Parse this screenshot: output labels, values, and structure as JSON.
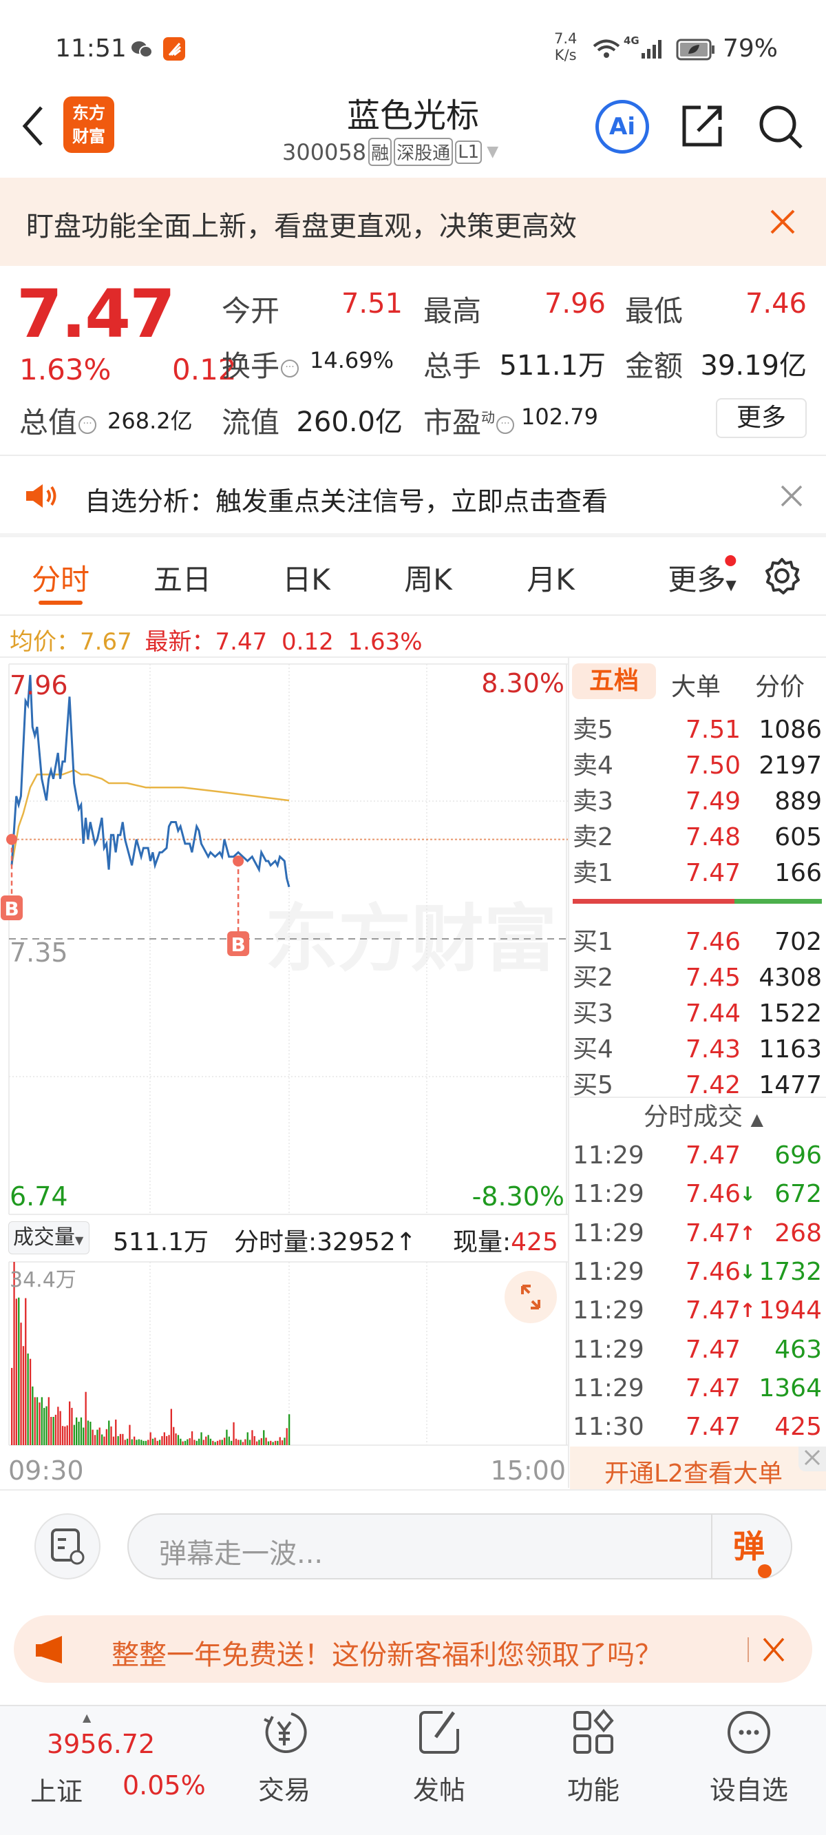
{
  "status_bar": {
    "time": "11:51",
    "net_speed": "7.4",
    "net_unit": "K/s",
    "network": "4G",
    "battery": "79%"
  },
  "header": {
    "title": "蓝色光标",
    "code": "300058",
    "badges": [
      "融",
      "深股通",
      "L1"
    ],
    "logo_text": [
      "东方",
      "财富"
    ],
    "ai_label": "Ai"
  },
  "banner": {
    "text": "盯盘功能全面上新，看盘更直观，决策更高效"
  },
  "quote": {
    "price": "7.47",
    "change_pct": "1.63%",
    "change": "0.12",
    "more_label": "更多",
    "fields": [
      {
        "label": "今开",
        "value": "7.51"
      },
      {
        "label": "最高",
        "value": "7.96"
      },
      {
        "label": "最低",
        "value": "7.46"
      },
      {
        "label": "换手",
        "value": "14.69%"
      },
      {
        "label": "总手",
        "value": "511.1万"
      },
      {
        "label": "金额",
        "value": "39.19亿"
      },
      {
        "label": "总值",
        "value": "268.2亿"
      },
      {
        "label": "流值",
        "value": "260.0亿"
      },
      {
        "label": "市盈",
        "value": "102.79",
        "sup": "动"
      }
    ]
  },
  "alert": {
    "text": "自选分析：触发重点关注信号，立即点击查看"
  },
  "tabs": [
    "分时",
    "五日",
    "日K",
    "周K",
    "月K",
    "更多"
  ],
  "info": {
    "avg_label": "均价：",
    "avg": "7.67",
    "latest_label": "最新：",
    "latest": "7.47",
    "change": "0.12",
    "pct": "1.63%"
  },
  "colors": {
    "up": "#e02a2a",
    "down": "#1f9a1f",
    "accent": "#f05a0f",
    "price_line": "#2f6db5",
    "avg_line": "#e8b444",
    "ref_line": "#e8956a"
  },
  "chart_data": {
    "type": "line",
    "y_labels": {
      "top": "7.96",
      "mid": "7.35",
      "bottom": "6.74",
      "pct_top": "8.30%",
      "pct_bottom": "-8.30%"
    },
    "x_labels": {
      "start": "09:30",
      "end": "15:00"
    },
    "ylim": [
      6.74,
      7.96
    ],
    "prev_close": 7.35,
    "ref_line": 7.58,
    "watermark": "东方财富",
    "series": [
      {
        "key": "price",
        "x": [
          "09:30",
          "09:32",
          "09:33",
          "09:34",
          "09:36",
          "09:37",
          "09:38",
          "09:39",
          "09:40",
          "09:41",
          "09:43",
          "09:45",
          "09:46",
          "09:47",
          "09:48",
          "09:50",
          "09:51",
          "09:52",
          "09:53",
          "09:55",
          "09:57",
          "09:58",
          "09:59",
          "10:00",
          "10:01",
          "10:02",
          "10:03",
          "10:04",
          "10:06",
          "10:07",
          "10:09",
          "10:10",
          "10:11",
          "10:12",
          "10:13",
          "10:14",
          "10:15",
          "10:16",
          "10:17",
          "10:18",
          "10:19",
          "10:22",
          "10:24",
          "10:26",
          "10:27",
          "10:29",
          "10:30",
          "10:31",
          "10:32",
          "10:34",
          "10:35",
          "10:37",
          "10:38",
          "10:39",
          "10:41",
          "10:42",
          "10:43",
          "10:44",
          "10:45",
          "10:47",
          "10:48",
          "10:50",
          "10:51",
          "10:52",
          "10:55",
          "10:56",
          "10:58",
          "11:00",
          "11:01",
          "11:02",
          "11:04",
          "11:06",
          "11:08",
          "11:10",
          "11:12",
          "11:14",
          "11:15",
          "11:17",
          "11:18",
          "11:20",
          "11:21",
          "11:22",
          "11:24",
          "11:25",
          "11:26",
          "11:28",
          "11:29",
          "11:30"
        ],
        "y": [
          7.52,
          7.68,
          7.66,
          7.68,
          7.9,
          7.89,
          7.96,
          7.84,
          7.82,
          7.84,
          7.72,
          7.67,
          7.72,
          7.74,
          7.72,
          7.78,
          7.72,
          7.76,
          7.76,
          7.91,
          7.71,
          7.68,
          7.65,
          7.66,
          7.57,
          7.63,
          7.58,
          7.62,
          7.57,
          7.58,
          7.63,
          7.56,
          7.57,
          7.51,
          7.59,
          7.59,
          7.55,
          7.59,
          7.59,
          7.62,
          7.58,
          7.52,
          7.58,
          7.54,
          7.56,
          7.56,
          7.53,
          7.55,
          7.52,
          7.55,
          7.55,
          7.56,
          7.61,
          7.62,
          7.62,
          7.6,
          7.61,
          7.59,
          7.57,
          7.57,
          7.55,
          7.61,
          7.6,
          7.57,
          7.54,
          7.55,
          7.54,
          7.55,
          7.54,
          7.58,
          7.54,
          7.54,
          7.55,
          7.54,
          7.53,
          7.54,
          7.53,
          7.51,
          7.55,
          7.53,
          7.53,
          7.52,
          7.53,
          7.52,
          7.54,
          7.53,
          7.49,
          7.47
        ]
      },
      {
        "key": "avg",
        "x": [
          "09:30",
          "09:33",
          "09:35",
          "09:38",
          "09:41",
          "09:44",
          "09:49",
          "09:52",
          "09:57",
          "10:00",
          "10:03",
          "10:09",
          "10:12",
          "10:20",
          "10:28",
          "10:44",
          "11:00",
          "11:15",
          "11:30"
        ],
        "y": [
          7.52,
          7.61,
          7.64,
          7.7,
          7.73,
          7.73,
          7.73,
          7.73,
          7.74,
          7.73,
          7.73,
          7.72,
          7.71,
          7.71,
          7.7,
          7.7,
          7.69,
          7.68,
          7.67
        ]
      }
    ],
    "markers": [
      {
        "label": "B",
        "time": "09:30",
        "price": 7.58
      },
      {
        "label": "B",
        "time": "11:08",
        "price": 7.53
      }
    ],
    "volume": {
      "unit": "万",
      "max_label": "34.4万",
      "start": "09:30",
      "values": [
        14.5,
        34.4,
        27.5,
        27.7,
        23.0,
        18.6,
        27.6,
        17.2,
        16.2,
        11.0,
        9.0,
        9.0,
        8.0,
        9.0,
        7.0,
        7.3,
        9.0,
        5.3,
        5.3,
        5.7,
        7.2,
        6.4,
        3.6,
        3.5,
        3.7,
        8.2,
        7.0,
        3.8,
        5.2,
        4.4,
        5.2,
        3.3,
        10.0,
        4.6,
        4.4,
        2.9,
        1.9,
        2.9,
        3.3,
        2.0,
        1.6,
        3.0,
        4.6,
        3.5,
        1.6,
        4.8,
        1.7,
        2.1,
        2.1,
        1.0,
        1.2,
        3.8,
        1.1,
        1.6,
        1.0,
        1.1,
        1.0,
        0.8,
        0.8,
        1.0,
        2.4,
        1.2,
        1.4,
        0.8,
        1.0,
        1.7,
        2.4,
        1.7,
        1.9,
        6.8,
        3.4,
        2.2,
        1.9,
        1.2,
        0.7,
        0.8,
        1.1,
        1.3,
        2.6,
        1.0,
        0.8,
        1.2,
        2.4,
        1.0,
        1.6,
        1.9,
        1.2,
        0.8,
        0.6,
        0.8,
        1.0,
        1.0,
        1.4,
        2.9,
        1.6,
        0.8,
        4.3,
        1.2,
        1.0,
        1.0,
        0.6,
        1.1,
        2.4,
        1.0,
        2.8,
        1.7,
        0.7,
        1.0,
        1.3,
        2.8,
        1.4,
        0.7,
        0.8,
        0.6,
        0.8,
        0.8,
        1.5,
        0.9,
        1.4,
        3.2,
        5.8
      ],
      "directions": "rrrgrrrgrgrgrgggrrgrrrrrrrrgggggrggrrgrgrrgrrrgrrrgrgrgggggrrgrrgrrrrrrrggrggrrrgggrrggrgrrgrgggrrrgrrggrrrgrgrgrgrgrrgrgg"
    }
  },
  "volume_header": {
    "selector": "成交量",
    "total": "511.1万",
    "minute_label": "分时量:",
    "minute_value": "32952↑",
    "now_label": "现量:",
    "now_value": "425"
  },
  "order_book": {
    "tabs": [
      "五档",
      "大单",
      "分价"
    ],
    "asks": [
      {
        "label": "卖5",
        "price": "7.51",
        "vol": "1086"
      },
      {
        "label": "卖4",
        "price": "7.50",
        "vol": "2197"
      },
      {
        "label": "卖3",
        "price": "7.49",
        "vol": "889"
      },
      {
        "label": "卖2",
        "price": "7.48",
        "vol": "605"
      },
      {
        "label": "卖1",
        "price": "7.47",
        "vol": "166"
      }
    ],
    "bids": [
      {
        "label": "买1",
        "price": "7.46",
        "vol": "702"
      },
      {
        "label": "买2",
        "price": "7.45",
        "vol": "4308"
      },
      {
        "label": "买3",
        "price": "7.44",
        "vol": "1522"
      },
      {
        "label": "买4",
        "price": "7.43",
        "vol": "1163"
      },
      {
        "label": "买5",
        "price": "7.42",
        "vol": "1477"
      }
    ],
    "buy_ratio": 0.65
  },
  "trades": {
    "title": "分时成交",
    "rows": [
      {
        "time": "11:29",
        "price": "7.47",
        "arrow": "",
        "vol": "696",
        "dir": "down"
      },
      {
        "time": "11:29",
        "price": "7.46",
        "arrow": "↓",
        "vol": "672",
        "dir": "down"
      },
      {
        "time": "11:29",
        "price": "7.47",
        "arrow": "↑",
        "vol": "268",
        "dir": "up"
      },
      {
        "time": "11:29",
        "price": "7.46",
        "arrow": "↓",
        "vol": "1732",
        "dir": "down"
      },
      {
        "time": "11:29",
        "price": "7.47",
        "arrow": "↑",
        "vol": "1944",
        "dir": "up"
      },
      {
        "time": "11:29",
        "price": "7.47",
        "arrow": "",
        "vol": "463",
        "dir": "down"
      },
      {
        "time": "11:29",
        "price": "7.47",
        "arrow": "",
        "vol": "1364",
        "dir": "down"
      },
      {
        "time": "11:30",
        "price": "7.47",
        "arrow": "",
        "vol": "425",
        "dir": "up"
      }
    ]
  },
  "l2": {
    "text": "开通L2查看大单"
  },
  "comment": {
    "placeholder": "弹幕走一波...",
    "send": "弹"
  },
  "promo": {
    "text": "整整一年免费送！这份新客福利您领取了吗？"
  },
  "bottom": {
    "index_value": "3956.72",
    "index_name": "上证",
    "index_pct": "0.05%",
    "nav": [
      "交易",
      "发帖",
      "功能",
      "设自选"
    ]
  }
}
